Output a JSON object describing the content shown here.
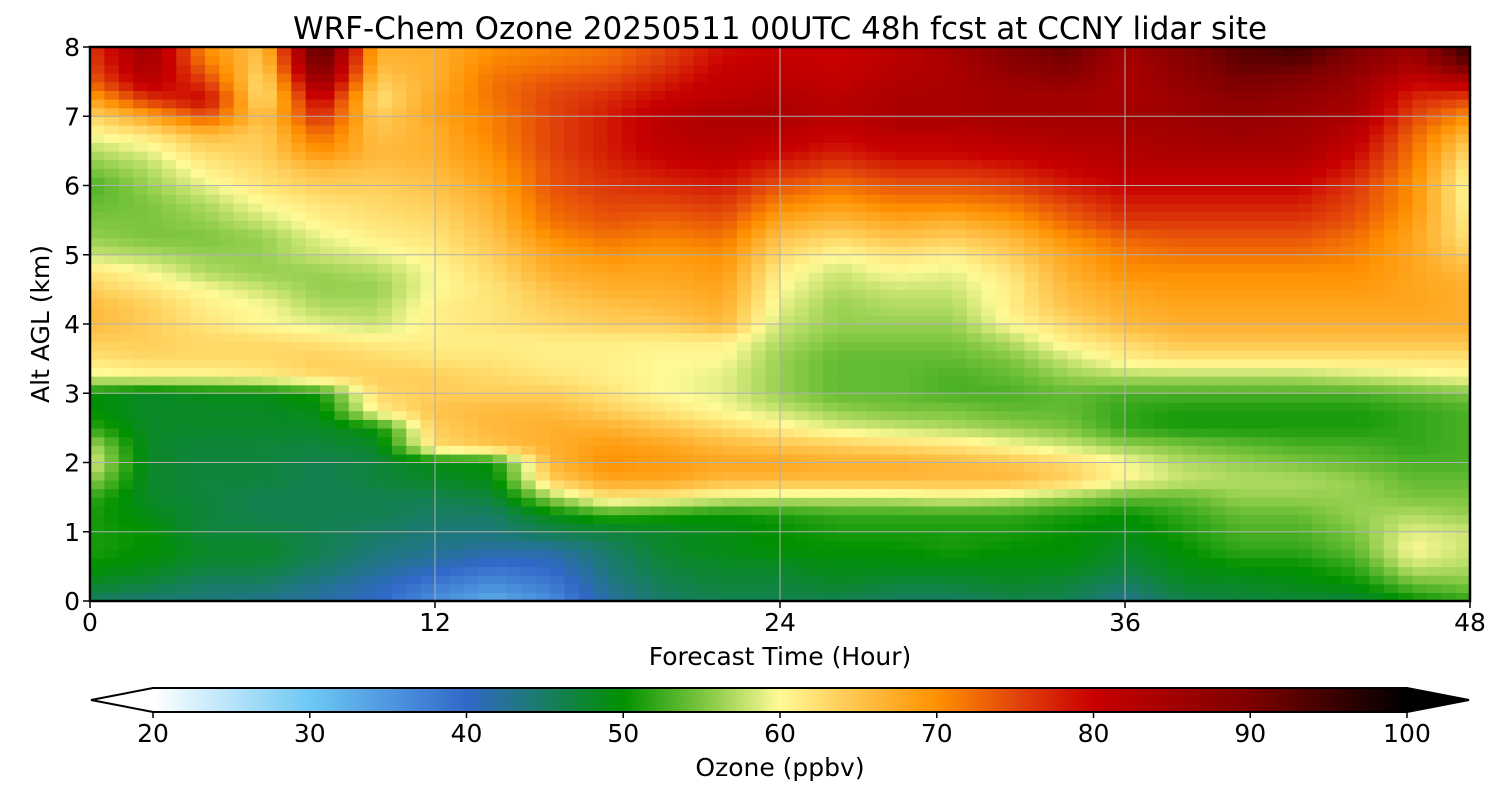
{
  "chart_data": {
    "type": "heatmap",
    "title": "WRF-Chem Ozone  20250511 00UTC 48h fcst at CCNY lidar site",
    "xlabel": "Forecast Time (Hour)",
    "ylabel": "Alt AGL (km)",
    "xlim": [
      0,
      48
    ],
    "ylim": [
      0,
      8
    ],
    "x_ticks": [
      0,
      12,
      24,
      36,
      48
    ],
    "y_ticks": [
      0,
      1,
      2,
      3,
      4,
      5,
      6,
      7,
      8
    ],
    "grid": true,
    "x": [
      0,
      2,
      4,
      6,
      8,
      10,
      12,
      14,
      16,
      18,
      20,
      22,
      24,
      26,
      28,
      30,
      32,
      34,
      36,
      38,
      40,
      42,
      44,
      46,
      48
    ],
    "y": [
      0,
      0.25,
      0.5,
      0.75,
      1,
      1.25,
      1.5,
      1.75,
      2,
      2.25,
      2.5,
      2.75,
      3,
      3.25,
      3.5,
      3.75,
      4,
      4.25,
      4.5,
      4.75,
      5,
      5.25,
      5.5,
      5.75,
      6,
      6.25,
      6.5,
      6.75,
      7,
      7.25,
      7.5,
      7.75,
      8
    ],
    "z": [
      [
        45,
        44,
        44,
        43,
        42,
        40,
        36,
        33,
        36,
        42,
        45,
        46,
        46,
        46,
        45,
        45,
        46,
        46,
        43,
        46,
        47,
        47,
        47,
        50,
        52
      ],
      [
        48,
        47,
        45,
        45,
        43,
        41,
        38,
        36,
        38,
        43,
        46,
        47,
        47,
        48,
        47,
        47,
        48,
        47,
        45,
        48,
        48,
        49,
        50,
        54,
        55
      ],
      [
        50,
        49,
        47,
        47,
        45,
        43,
        41,
        39,
        40,
        44,
        47,
        48,
        48,
        49,
        49,
        49,
        49,
        49,
        47,
        49,
        50,
        50,
        52,
        58,
        57
      ],
      [
        51,
        50,
        48,
        48,
        46,
        44,
        43,
        42,
        42,
        45,
        48,
        49,
        50,
        50,
        50,
        51,
        50,
        50,
        48,
        50,
        52,
        52,
        54,
        60,
        58
      ],
      [
        51,
        50,
        47,
        47,
        46,
        45,
        44,
        44,
        46,
        47,
        48,
        49,
        50,
        51,
        51,
        51,
        51,
        50,
        49,
        51,
        53,
        53,
        55,
        59,
        58
      ],
      [
        51,
        49,
        47,
        46,
        46,
        46,
        45,
        45,
        49,
        52,
        51,
        50,
        51,
        52,
        52,
        52,
        52,
        51,
        50,
        52,
        54,
        54,
        56,
        57,
        56
      ],
      [
        52,
        48,
        47,
        46,
        46,
        46,
        46,
        47,
        56,
        62,
        61,
        59,
        58,
        58,
        58,
        59,
        58,
        56,
        54,
        54,
        56,
        56,
        56,
        55,
        55
      ],
      [
        56,
        48,
        47,
        47,
        46,
        47,
        48,
        49,
        64,
        68,
        68,
        66,
        66,
        66,
        66,
        66,
        66,
        64,
        60,
        58,
        57,
        57,
        56,
        54,
        54
      ],
      [
        59,
        48,
        47,
        47,
        46,
        47,
        49,
        50,
        66,
        70,
        69,
        68,
        68,
        67,
        67,
        66,
        65,
        63,
        60,
        57,
        56,
        55,
        54,
        53,
        53
      ],
      [
        57,
        48,
        47,
        47,
        47,
        48,
        63,
        65,
        67,
        69,
        68,
        66,
        65,
        64,
        63,
        62,
        60,
        58,
        56,
        55,
        54,
        53,
        53,
        52,
        53
      ],
      [
        52,
        48,
        48,
        48,
        48,
        50,
        64,
        66,
        67,
        67,
        65,
        63,
        61,
        59,
        58,
        57,
        56,
        55,
        52,
        51,
        51,
        51,
        51,
        52,
        53
      ],
      [
        50,
        48,
        48,
        48,
        49,
        61,
        65,
        66,
        66,
        64,
        62,
        60,
        58,
        56,
        55,
        55,
        54,
        54,
        52,
        51,
        51,
        51,
        51,
        52,
        53
      ],
      [
        50,
        48,
        49,
        49,
        51,
        63,
        64,
        64,
        64,
        62,
        60,
        59,
        56,
        54,
        54,
        53,
        53,
        54,
        53,
        53,
        53,
        53,
        53,
        54,
        55
      ],
      [
        59,
        60,
        60,
        61,
        63,
        64,
        64,
        63,
        62,
        61,
        60,
        59,
        56,
        54,
        54,
        53,
        54,
        56,
        57,
        57,
        57,
        57,
        58,
        59,
        60
      ],
      [
        62,
        63,
        63,
        63,
        64,
        63,
        62,
        62,
        61,
        61,
        60,
        60,
        56,
        54,
        54,
        54,
        55,
        58,
        61,
        62,
        62,
        62,
        62,
        62,
        62
      ],
      [
        64,
        64,
        63,
        63,
        62,
        61,
        61,
        61,
        61,
        61,
        61,
        61,
        57,
        55,
        55,
        55,
        57,
        61,
        63,
        65,
        65,
        65,
        65,
        65,
        65
      ],
      [
        66,
        64,
        62,
        60,
        59,
        58,
        61,
        62,
        63,
        64,
        64,
        66,
        58,
        56,
        56,
        56,
        60,
        63,
        66,
        67,
        67,
        67,
        67,
        67,
        67
      ],
      [
        66,
        64,
        61,
        60,
        57,
        57,
        61,
        62,
        64,
        65,
        66,
        67,
        59,
        56,
        57,
        57,
        61,
        65,
        67,
        68,
        68,
        68,
        68,
        68,
        67
      ],
      [
        64,
        62,
        60,
        58,
        56,
        56,
        60,
        62,
        65,
        67,
        67,
        68,
        60,
        57,
        58,
        58,
        61,
        66,
        68,
        69,
        69,
        69,
        69,
        68,
        67
      ],
      [
        62,
        60,
        57,
        56,
        56,
        57,
        60,
        63,
        67,
        68,
        68,
        69,
        61,
        58,
        60,
        59,
        62,
        67,
        70,
        70,
        70,
        70,
        70,
        68,
        66
      ],
      [
        58,
        57,
        56,
        56,
        58,
        59,
        61,
        64,
        68,
        70,
        69,
        70,
        63,
        60,
        62,
        61,
        64,
        68,
        71,
        72,
        72,
        72,
        71,
        68,
        64
      ],
      [
        56,
        55,
        55,
        56,
        59,
        61,
        62,
        65,
        70,
        72,
        71,
        72,
        65,
        63,
        65,
        64,
        66,
        70,
        73,
        74,
        74,
        74,
        72,
        68,
        62
      ],
      [
        55,
        55,
        56,
        58,
        61,
        62,
        63,
        66,
        72,
        74,
        73,
        74,
        68,
        66,
        68,
        67,
        69,
        73,
        76,
        76,
        76,
        76,
        74,
        69,
        61
      ],
      [
        54,
        55,
        57,
        60,
        62,
        63,
        64,
        67,
        73,
        75,
        75,
        76,
        71,
        69,
        71,
        71,
        72,
        75,
        78,
        78,
        78,
        78,
        75,
        70,
        60
      ],
      [
        53,
        56,
        59,
        62,
        64,
        64,
        65,
        68,
        74,
        76,
        77,
        78,
        74,
        72,
        74,
        74,
        75,
        78,
        80,
        80,
        80,
        80,
        76,
        70,
        60
      ],
      [
        55,
        57,
        61,
        63,
        66,
        65,
        66,
        69,
        74,
        77,
        79,
        80,
        77,
        75,
        77,
        77,
        78,
        80,
        82,
        82,
        82,
        82,
        78,
        71,
        61
      ],
      [
        57,
        59,
        63,
        64,
        70,
        66,
        67,
        70,
        75,
        78,
        81,
        82,
        80,
        78,
        80,
        80,
        81,
        82,
        83,
        84,
        84,
        84,
        80,
        72,
        63
      ],
      [
        60,
        62,
        66,
        64,
        73,
        65,
        67,
        71,
        75,
        78,
        82,
        83,
        82,
        80,
        82,
        82,
        83,
        84,
        84,
        85,
        86,
        85,
        82,
        73,
        66
      ],
      [
        63,
        68,
        74,
        65,
        77,
        64,
        68,
        71,
        75,
        78,
        82,
        84,
        84,
        82,
        84,
        84,
        85,
        85,
        85,
        86,
        87,
        86,
        84,
        75,
        70
      ],
      [
        68,
        76,
        80,
        62,
        81,
        62,
        68,
        72,
        75,
        77,
        80,
        82,
        83,
        82,
        84,
        84,
        85,
        85,
        84,
        86,
        88,
        87,
        85,
        77,
        75
      ],
      [
        73,
        82,
        76,
        62,
        87,
        64,
        67,
        72,
        74,
        75,
        78,
        81,
        82,
        81,
        83,
        84,
        86,
        87,
        84,
        87,
        90,
        89,
        86,
        80,
        82
      ],
      [
        75,
        85,
        72,
        64,
        92,
        66,
        67,
        71,
        72,
        73,
        76,
        80,
        81,
        80,
        82,
        84,
        88,
        90,
        84,
        88,
        92,
        92,
        88,
        84,
        92
      ],
      [
        76,
        86,
        70,
        65,
        95,
        67,
        67,
        70,
        71,
        72,
        75,
        79,
        80,
        80,
        82,
        85,
        89,
        92,
        85,
        89,
        93,
        95,
        90,
        86,
        96
      ]
    ],
    "colorbar": {
      "label": "Ozone  (ppbv)",
      "min": 20,
      "max": 100,
      "ticks": [
        20,
        30,
        40,
        50,
        60,
        70,
        80,
        90,
        100
      ],
      "extend": "both",
      "stops": [
        {
          "v": 20,
          "c": "#ffffff"
        },
        {
          "v": 30,
          "c": "#6ec8f5"
        },
        {
          "v": 40,
          "c": "#3168c9"
        },
        {
          "v": 50,
          "c": "#009100"
        },
        {
          "v": 55,
          "c": "#7cc53e"
        },
        {
          "v": 60,
          "c": "#fffa96"
        },
        {
          "v": 65,
          "c": "#ffc34a"
        },
        {
          "v": 70,
          "c": "#ff9100"
        },
        {
          "v": 75,
          "c": "#e2450a"
        },
        {
          "v": 80,
          "c": "#c80000"
        },
        {
          "v": 90,
          "c": "#7d0000"
        },
        {
          "v": 100,
          "c": "#000000"
        }
      ]
    }
  }
}
